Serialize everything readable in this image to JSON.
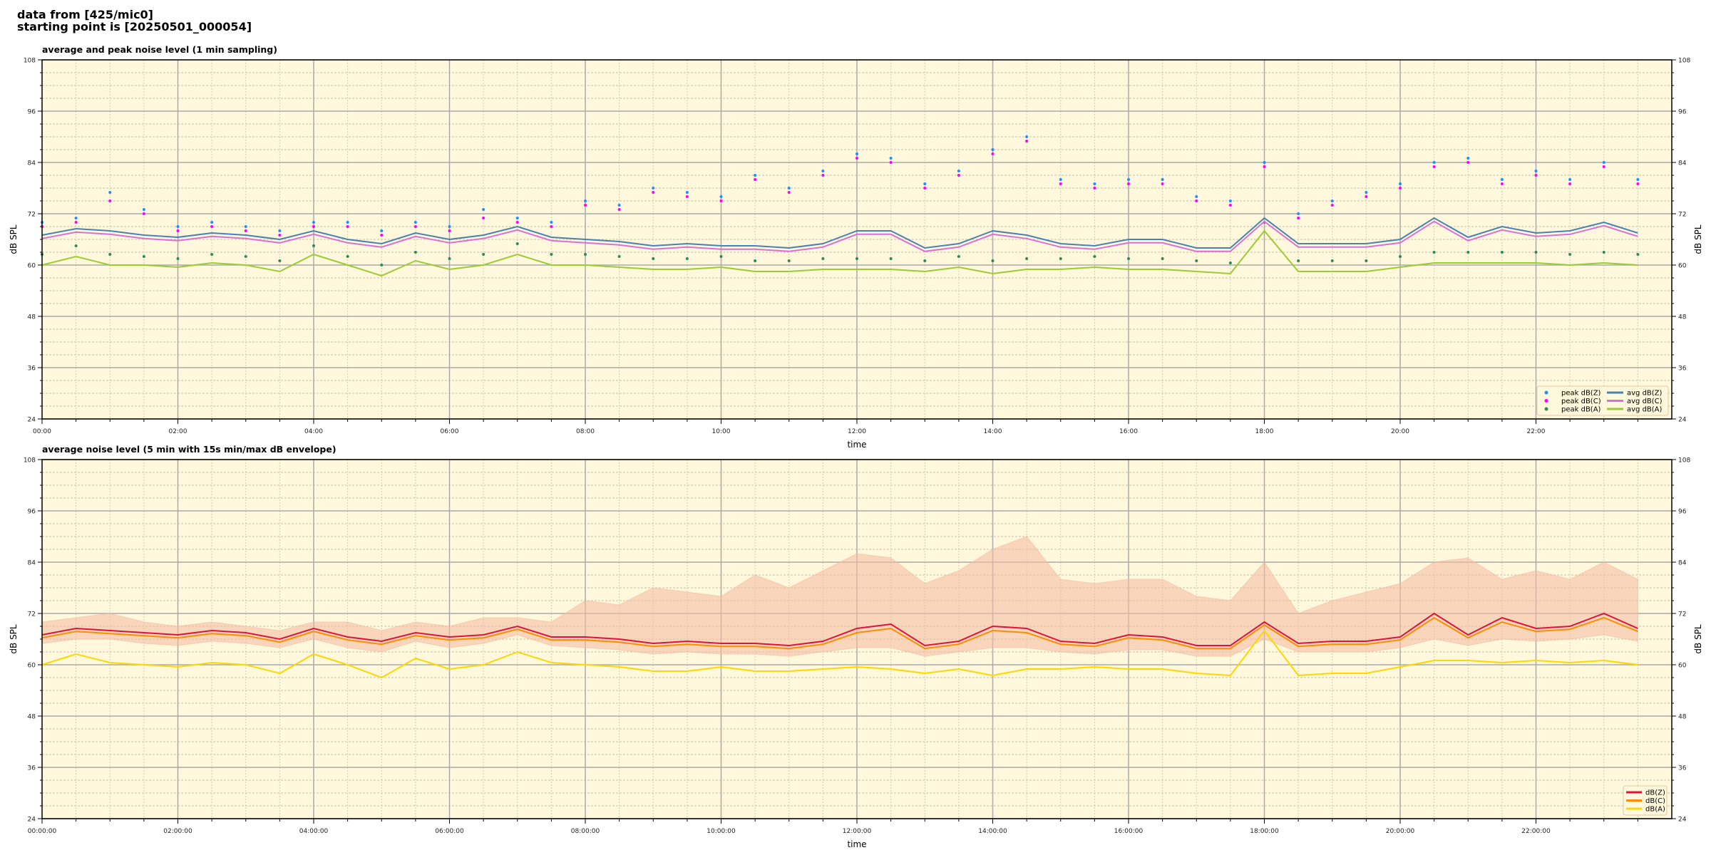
{
  "header": {
    "line1": "data from [425/mic0]",
    "line2": "starting point is [20250501_000054]"
  },
  "chart_data": [
    {
      "type": "line",
      "title": "average and peak noise level (1 min sampling)",
      "xlabel": "time",
      "ylabel": "dB SPL",
      "xlim_hours": [
        0,
        24
      ],
      "ylim": [
        24,
        108
      ],
      "yticks": [
        24,
        36,
        48,
        60,
        72,
        84,
        96,
        108
      ],
      "xtick_labels": [
        "00:00",
        "02:00",
        "04:00",
        "06:00",
        "08:00",
        "10:00",
        "12:00",
        "14:00",
        "16:00",
        "18:00",
        "20:00",
        "22:00"
      ],
      "grid": true,
      "background": "#fff8dc",
      "legend_placement": "lower-right",
      "x_hours": [
        0,
        0.5,
        1,
        1.5,
        2,
        2.5,
        3,
        3.5,
        4,
        4.5,
        5,
        5.5,
        6,
        6.5,
        7,
        7.5,
        8,
        8.5,
        9,
        9.5,
        10,
        10.5,
        11,
        11.5,
        12,
        12.5,
        13,
        13.5,
        14,
        14.5,
        15,
        15.5,
        16,
        16.5,
        17,
        17.5,
        18,
        18.5,
        19,
        19.5,
        20,
        20.5,
        21,
        21.5,
        22,
        22.5,
        23,
        23.5
      ],
      "series": [
        {
          "name": "peak dB(Z)",
          "kind": "scatter",
          "color": "#1e90ff",
          "values": [
            70,
            71,
            77,
            73,
            69,
            70,
            69,
            68,
            70,
            70,
            68,
            70,
            69,
            73,
            71,
            70,
            75,
            74,
            78,
            77,
            76,
            81,
            78,
            82,
            86,
            85,
            79,
            82,
            87,
            90,
            80,
            79,
            80,
            80,
            76,
            75,
            84,
            72,
            75,
            77,
            79,
            84,
            85,
            80,
            82,
            80,
            84,
            80
          ]
        },
        {
          "name": "peak dB(C)",
          "kind": "scatter",
          "color": "#ff00ff",
          "values": [
            69,
            70,
            75,
            72,
            68,
            69,
            68,
            67,
            69,
            69,
            67,
            69,
            68,
            71,
            70,
            69,
            74,
            73,
            77,
            76,
            75,
            80,
            77,
            81,
            85,
            84,
            78,
            81,
            86,
            89,
            79,
            78,
            79,
            79,
            75,
            74,
            83,
            71,
            74,
            76,
            78,
            83,
            84,
            79,
            81,
            79,
            83,
            79
          ]
        },
        {
          "name": "peak dB(A)",
          "kind": "scatter",
          "color": "#2e8b57",
          "values": [
            62.5,
            64.5,
            62.5,
            62,
            61.5,
            62.5,
            62,
            61,
            64.5,
            62,
            60,
            63,
            61.5,
            62.5,
            65,
            62.5,
            62.5,
            62,
            61.5,
            61.5,
            62,
            61,
            61,
            61.5,
            61.5,
            61.5,
            61,
            62,
            61,
            61.5,
            61.5,
            62,
            61.5,
            61.5,
            61,
            60.5,
            70,
            61,
            61,
            61,
            62,
            63,
            63,
            63,
            63,
            62.5,
            63,
            62.5
          ]
        },
        {
          "name": "avg dB(Z)",
          "kind": "line",
          "color": "#4682b4",
          "values": [
            67,
            68.5,
            68,
            67,
            66.5,
            67.5,
            67,
            66,
            68,
            66,
            65,
            67.5,
            66,
            67,
            69,
            66.5,
            66,
            65.5,
            64.5,
            65,
            64.5,
            64.5,
            64,
            65,
            68,
            68,
            64,
            65,
            68,
            67,
            65,
            64.5,
            66,
            66,
            64,
            64,
            71,
            65,
            65,
            65,
            66,
            71,
            66.5,
            69,
            67.5,
            68,
            70,
            67.5
          ]
        },
        {
          "name": "avg dB(C)",
          "kind": "line",
          "color": "#da70d6",
          "values": [
            66.2,
            67.7,
            67.2,
            66.2,
            65.7,
            66.7,
            66.2,
            65.2,
            67.2,
            65.2,
            64.2,
            66.7,
            65.2,
            66.2,
            68.2,
            65.7,
            65.2,
            64.7,
            63.7,
            64.2,
            63.7,
            63.7,
            63.2,
            64.2,
            67.2,
            67.2,
            63.2,
            64.2,
            67.2,
            66.2,
            64.2,
            63.7,
            65.2,
            65.2,
            63.2,
            63.2,
            70.2,
            64.2,
            64.2,
            64.2,
            65.2,
            70.2,
            65.7,
            68.2,
            66.7,
            67.2,
            69.2,
            66.7
          ]
        },
        {
          "name": "avg dB(A)",
          "kind": "line",
          "color": "#9acd32",
          "values": [
            60,
            62,
            60,
            60,
            59.5,
            60.5,
            60,
            58.5,
            62.5,
            60,
            57.5,
            61,
            59,
            60,
            62.5,
            60,
            60,
            59.5,
            59,
            59,
            59.5,
            58.5,
            58.5,
            59,
            59,
            59,
            58.5,
            59.5,
            58,
            59,
            59,
            59.5,
            59,
            59,
            58.5,
            58,
            68,
            58.5,
            58.5,
            58.5,
            59.5,
            60.5,
            60.5,
            60.5,
            60.5,
            60,
            60.5,
            60
          ]
        }
      ]
    },
    {
      "type": "line",
      "title": "average noise level (5 min with 15s min/max dB envelope)",
      "xlabel": "time",
      "ylabel": "dB SPL",
      "xlim_hours": [
        0,
        24
      ],
      "ylim": [
        24,
        108
      ],
      "yticks": [
        24,
        36,
        48,
        60,
        72,
        84,
        96,
        108
      ],
      "xtick_labels": [
        "00:00:00",
        "02:00:00",
        "04:00:00",
        "06:00:00",
        "08:00:00",
        "10:00:00",
        "12:00:00",
        "14:00:00",
        "16:00:00",
        "18:00:00",
        "20:00:00",
        "22:00:00"
      ],
      "grid": true,
      "background": "#fff8dc",
      "legend_placement": "lower-right",
      "x_hours": [
        0,
        0.5,
        1,
        1.5,
        2,
        2.5,
        3,
        3.5,
        4,
        4.5,
        5,
        5.5,
        6,
        6.5,
        7,
        7.5,
        8,
        8.5,
        9,
        9.5,
        10,
        10.5,
        11,
        11.5,
        12,
        12.5,
        13,
        13.5,
        14,
        14.5,
        15,
        15.5,
        16,
        16.5,
        17,
        17.5,
        18,
        18.5,
        19,
        19.5,
        20,
        20.5,
        21,
        21.5,
        22,
        22.5,
        23,
        23.5
      ],
      "envelope": {
        "color": "#f4b9a0",
        "max": [
          70,
          71,
          72,
          70,
          69,
          70,
          69,
          68,
          70,
          70,
          68,
          70,
          69,
          71,
          71,
          70,
          75,
          74,
          78,
          77,
          76,
          81,
          78,
          82,
          86,
          85,
          79,
          82,
          87,
          90,
          80,
          79,
          80,
          80,
          76,
          75,
          84,
          72,
          75,
          77,
          79,
          84,
          85,
          80,
          82,
          80,
          84,
          80
        ],
        "min": [
          65,
          66,
          66,
          65,
          64.5,
          65.5,
          65,
          64,
          66,
          64,
          63,
          65.5,
          64,
          65,
          67,
          64.5,
          64,
          63.5,
          62.5,
          63,
          62.5,
          62.5,
          62,
          63,
          64,
          64,
          62,
          63,
          64,
          64,
          63,
          62.5,
          63.5,
          63.5,
          62,
          62,
          66,
          63,
          63,
          63,
          64,
          66,
          64.5,
          66,
          65.5,
          66,
          67,
          65.5
        ]
      },
      "series": [
        {
          "name": "dB(Z)",
          "color": "#dc143c",
          "values": [
            67,
            68.5,
            68,
            67.5,
            67,
            68,
            67.5,
            66,
            68.5,
            66.5,
            65.5,
            67.5,
            66.5,
            67,
            69,
            66.5,
            66.5,
            66,
            65,
            65.5,
            65,
            65,
            64.5,
            65.5,
            68.5,
            69.5,
            64.5,
            65.5,
            69,
            68.5,
            65.5,
            65,
            67,
            66.5,
            64.5,
            64.5,
            70,
            65,
            65.5,
            65.5,
            66.5,
            72,
            67,
            71,
            68.5,
            69,
            72,
            68.5
          ]
        },
        {
          "name": "dB(C)",
          "color": "#ff8c00",
          "values": [
            66.3,
            67.8,
            67.3,
            66.8,
            66.3,
            67.3,
            66.8,
            65.3,
            67.8,
            65.8,
            64.8,
            66.8,
            65.8,
            66.3,
            68.3,
            65.8,
            65.8,
            65.3,
            64.3,
            64.8,
            64.3,
            64.3,
            63.8,
            64.8,
            67.5,
            68.5,
            63.8,
            64.8,
            68,
            67.5,
            64.8,
            64.3,
            66.3,
            65.8,
            63.8,
            63.8,
            69.3,
            64.3,
            64.8,
            64.8,
            65.8,
            71,
            66.3,
            70,
            67.8,
            68.3,
            71,
            67.8
          ]
        },
        {
          "name": "dB(A)",
          "color": "#ffd700",
          "values": [
            60,
            62.5,
            60.5,
            60,
            59.5,
            60.5,
            60,
            58,
            62.5,
            60,
            57,
            61.5,
            59,
            60,
            63,
            60.5,
            60,
            59.5,
            58.5,
            58.5,
            59.5,
            58.5,
            58.5,
            59,
            59.5,
            59,
            58,
            59,
            57.5,
            59,
            59,
            59.5,
            59,
            59,
            58,
            57.5,
            68,
            57.5,
            58,
            58,
            59.5,
            61,
            61,
            60.5,
            61,
            60.5,
            61,
            60
          ]
        }
      ]
    }
  ]
}
